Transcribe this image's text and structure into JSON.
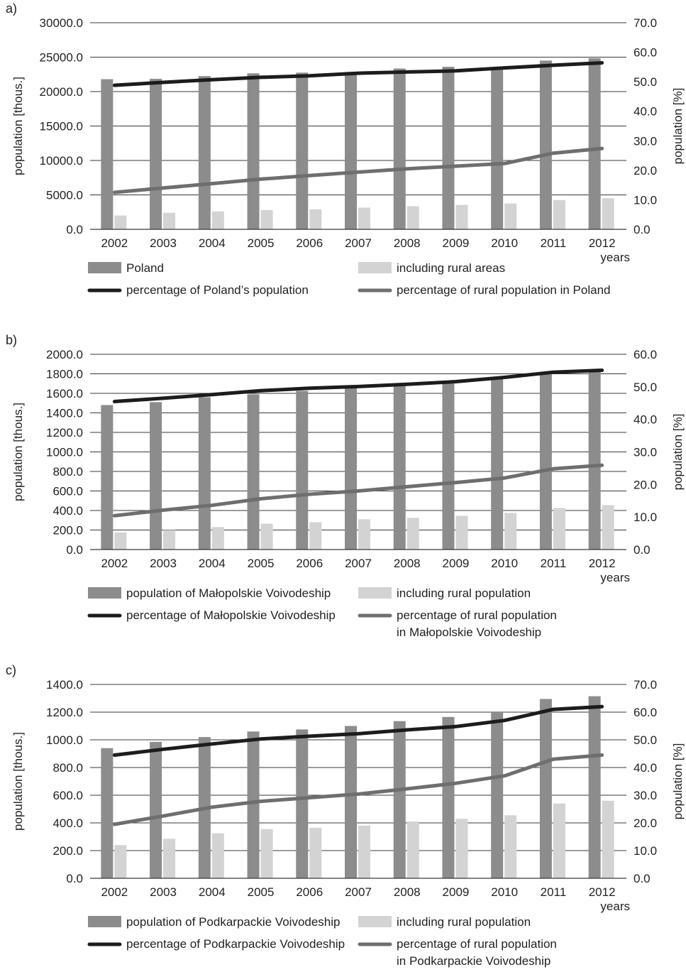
{
  "chart_data": [
    {
      "type": "bar+line",
      "panel_label": "a)",
      "categories": [
        "2002",
        "2003",
        "2004",
        "2005",
        "2006",
        "2007",
        "2008",
        "2009",
        "2010",
        "2011",
        "2012"
      ],
      "xlabel": "years",
      "ylabel": "population [thous.]",
      "y2label": "population [%]",
      "ylim": [
        0,
        30000
      ],
      "yticks": [
        "0.0",
        "5000.0",
        "10000.0",
        "15000.0",
        "20000.0",
        "25000.0",
        "30000.0"
      ],
      "y2lim": [
        0,
        70
      ],
      "y2ticks": [
        "0.0",
        "10.0",
        "20.0",
        "30.0",
        "40.0",
        "50.0",
        "60.0",
        "70.0"
      ],
      "grid": true,
      "series": [
        {
          "name": "Poland",
          "kind": "bar",
          "axis": "left",
          "color": "#8c8c8c",
          "values": [
            21800,
            21850,
            22250,
            22650,
            22750,
            22850,
            23350,
            23600,
            23500,
            24500,
            24850
          ]
        },
        {
          "name": "including rural areas",
          "kind": "bar",
          "axis": "left",
          "color": "#d3d3d3",
          "values": [
            2000,
            2400,
            2600,
            2800,
            2900,
            3150,
            3350,
            3550,
            3750,
            4250,
            4500
          ]
        },
        {
          "name": "percentage of Poland’s population",
          "kind": "line",
          "axis": "right",
          "color": "#1c1c1c",
          "values": [
            48.8,
            49.8,
            50.7,
            51.5,
            52.0,
            52.9,
            53.3,
            53.7,
            54.7,
            55.6,
            56.4
          ]
        },
        {
          "name": "percentage of rural population in Poland",
          "kind": "line",
          "axis": "right",
          "color": "#6e6e6e",
          "values": [
            12.5,
            14.0,
            15.5,
            17.0,
            18.2,
            19.4,
            20.5,
            21.4,
            22.3,
            25.8,
            27.4
          ]
        }
      ],
      "legend": [
        {
          "name": "Poland",
          "lines": [
            "Poland"
          ]
        },
        {
          "name": "including rural areas",
          "lines": [
            "including rural areas"
          ]
        },
        {
          "name": "percentage of Poland’s population",
          "lines": [
            "percentage of Poland’s population"
          ]
        },
        {
          "name": "percentage of rural population in Poland",
          "lines": [
            "percentage of rural population in Poland"
          ]
        }
      ]
    },
    {
      "type": "bar+line",
      "panel_label": "b)",
      "categories": [
        "2002",
        "2003",
        "2004",
        "2005",
        "2006",
        "2007",
        "2008",
        "2009",
        "2010",
        "2011",
        "2012"
      ],
      "xlabel": "years",
      "ylabel": "population [thous.]",
      "y2label": "population [%]",
      "ylim": [
        0,
        2000
      ],
      "yticks": [
        "0.0",
        "200.0",
        "400.0",
        "600.0",
        "800.0",
        "1000.0",
        "1200.0",
        "1400.0",
        "1600.0",
        "1800.0",
        "2000.0"
      ],
      "y2lim": [
        0,
        60
      ],
      "y2ticks": [
        "0.0",
        "10.0",
        "20.0",
        "30.0",
        "40.0",
        "50.0",
        "60.0"
      ],
      "grid": true,
      "series": [
        {
          "name": "population of Małopolskie Voivodeship",
          "kind": "bar",
          "axis": "left",
          "color": "#8c8c8c",
          "values": [
            1480,
            1510,
            1560,
            1590,
            1625,
            1655,
            1700,
            1730,
            1760,
            1810,
            1840
          ]
        },
        {
          "name": "including rural population",
          "kind": "bar",
          "axis": "left",
          "color": "#d3d3d3",
          "values": [
            175,
            200,
            230,
            265,
            280,
            310,
            325,
            345,
            375,
            425,
            455
          ]
        },
        {
          "name": "percentage of Małopolskie Voivodeship",
          "kind": "line",
          "axis": "right",
          "color": "#1c1c1c",
          "values": [
            45.5,
            46.5,
            47.6,
            48.8,
            49.6,
            50.1,
            50.8,
            51.6,
            52.9,
            54.5,
            55.1
          ]
        },
        {
          "name": "percentage of rural population in Małopolskie Voivodeship",
          "kind": "line",
          "axis": "right",
          "color": "#6e6e6e",
          "values": [
            10.4,
            12.1,
            13.6,
            15.6,
            17.0,
            18.0,
            19.3,
            20.6,
            22.0,
            24.8,
            25.9
          ]
        }
      ],
      "legend": [
        {
          "name": "population of Małopolskie Voivodeship",
          "lines": [
            "population of Małopolskie Voivodeship"
          ]
        },
        {
          "name": "including rural population",
          "lines": [
            "including rural population"
          ]
        },
        {
          "name": "percentage of Małopolskie Voivodeship",
          "lines": [
            "percentage of Małopolskie Voivodeship"
          ]
        },
        {
          "name": "percentage of rural population in Małopolskie Voivodeship",
          "lines": [
            "percentage of rural population",
            "in Małopolskie Voivodeship"
          ]
        }
      ]
    },
    {
      "type": "bar+line",
      "panel_label": "c)",
      "categories": [
        "2002",
        "2003",
        "2004",
        "2005",
        "2006",
        "2007",
        "2008",
        "2009",
        "2010",
        "2011",
        "2012"
      ],
      "xlabel": "years",
      "ylabel": "population [thous.]",
      "y2label": "population [%]",
      "ylim": [
        0,
        1400
      ],
      "yticks": [
        "0.0",
        "200.0",
        "400.0",
        "600.0",
        "800.0",
        "1000.0",
        "1200.0",
        "1400.0"
      ],
      "y2lim": [
        0,
        70
      ],
      "y2ticks": [
        "0.0",
        "10.0",
        "20.0",
        "30.0",
        "40.0",
        "50.0",
        "60.0",
        "70.0"
      ],
      "grid": true,
      "series": [
        {
          "name": "population of Podkarpackie Voivodeship",
          "kind": "bar",
          "axis": "left",
          "color": "#8c8c8c",
          "values": [
            940,
            985,
            1020,
            1060,
            1075,
            1100,
            1135,
            1165,
            1200,
            1295,
            1315
          ]
        },
        {
          "name": "including rural population",
          "kind": "bar",
          "axis": "left",
          "color": "#d3d3d3",
          "values": [
            240,
            285,
            325,
            355,
            365,
            380,
            410,
            430,
            455,
            540,
            560
          ]
        },
        {
          "name": "percentage of Podkarpackie Voivodeship",
          "kind": "line",
          "axis": "right",
          "color": "#1c1c1c",
          "values": [
            44.5,
            46.6,
            48.5,
            50.3,
            51.3,
            52.2,
            53.6,
            54.8,
            57.0,
            61.0,
            62.0
          ]
        },
        {
          "name": "percentage of rural population in Podkarpackie Voivodeship",
          "kind": "line",
          "axis": "right",
          "color": "#6e6e6e",
          "values": [
            19.5,
            22.5,
            25.7,
            27.8,
            29.1,
            30.4,
            32.3,
            34.3,
            37.0,
            43.0,
            44.5
          ]
        }
      ],
      "legend": [
        {
          "name": "population of Podkarpackie Voivodeship",
          "lines": [
            "population of Podkarpackie Voivodeship"
          ]
        },
        {
          "name": "including rural population",
          "lines": [
            "including rural population"
          ]
        },
        {
          "name": "percentage of Podkarpackie Voivodeship",
          "lines": [
            "percentage of Podkarpackie Voivodeship"
          ]
        },
        {
          "name": "percentage of rural population in Podkarpackie Voivodeship",
          "lines": [
            "percentage of rural population",
            "in Podkarpackie Voivodeship"
          ]
        }
      ]
    }
  ]
}
